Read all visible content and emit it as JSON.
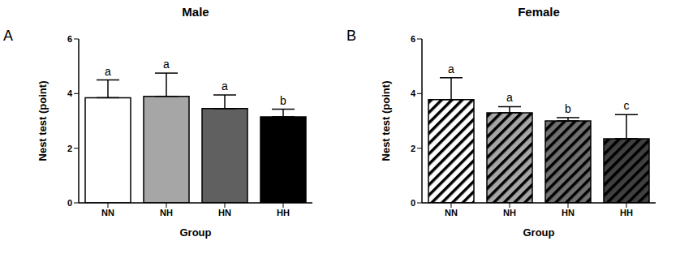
{
  "chart_data": [
    {
      "type": "bar",
      "panel": "A",
      "title": "Male",
      "xlabel": "Group",
      "ylabel": "Nest test (point)",
      "categories": [
        "NN",
        "NH",
        "HN",
        "HH"
      ],
      "values": [
        3.85,
        3.9,
        3.45,
        3.15
      ],
      "errors": [
        0.65,
        0.85,
        0.5,
        0.28
      ],
      "annotations": [
        "a",
        "a",
        "a",
        "b"
      ],
      "colors": [
        "#ffffff",
        "#a6a6a6",
        "#606060",
        "#000000"
      ],
      "ylim": [
        0,
        6
      ],
      "yticks": [
        0,
        2,
        4,
        6
      ]
    },
    {
      "type": "bar",
      "panel": "B",
      "title": "Female",
      "xlabel": "Group",
      "ylabel": "Nest test (point)",
      "categories": [
        "NN",
        "NH",
        "HN",
        "HH"
      ],
      "values": [
        3.78,
        3.3,
        3.0,
        2.35
      ],
      "errors": [
        0.8,
        0.22,
        0.12,
        0.88
      ],
      "annotations": [
        "a",
        "a",
        "b",
        "c"
      ],
      "colors": [
        "#ffffff",
        "#a6a6a6",
        "#707070",
        "#404040"
      ],
      "ylim": [
        0,
        6
      ],
      "yticks": [
        0,
        2,
        4,
        6
      ]
    }
  ]
}
